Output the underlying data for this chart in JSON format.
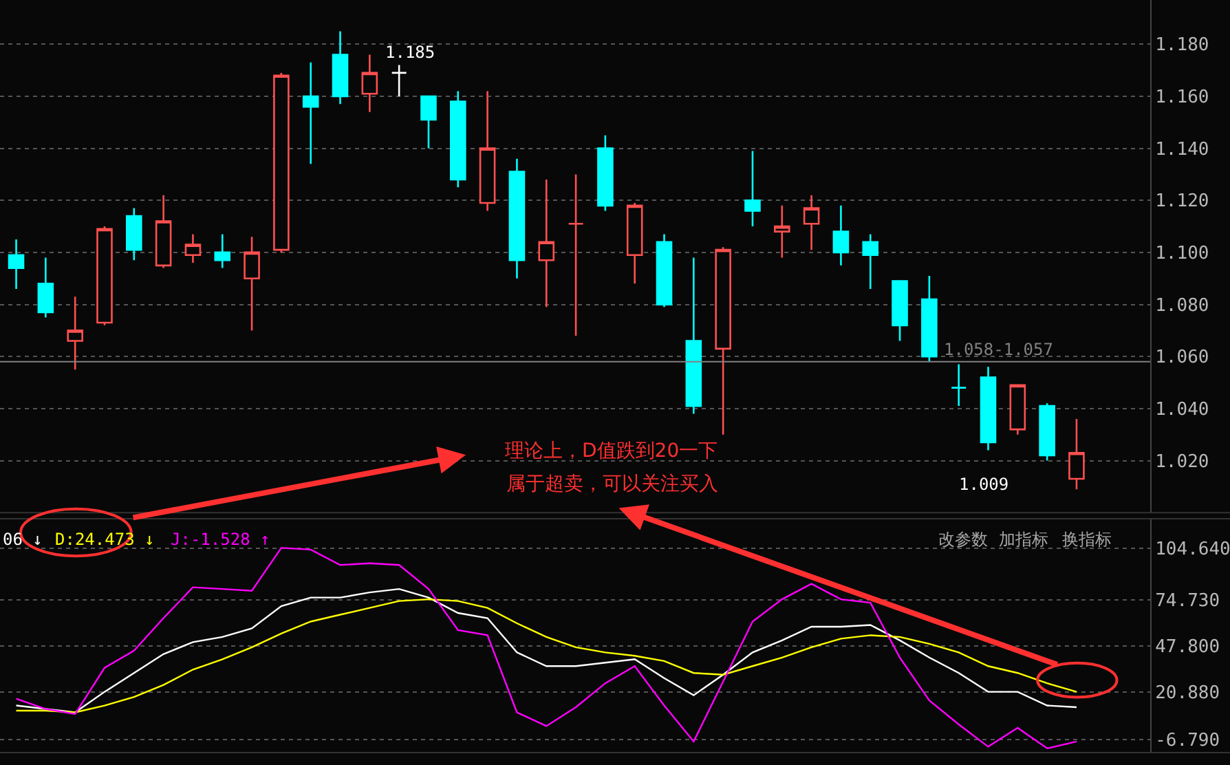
{
  "chart_data": [
    {
      "type": "candlestick",
      "categories": [
        null,
        null,
        null,
        null,
        null,
        null,
        null,
        null,
        null,
        null,
        null,
        null,
        null,
        null,
        null,
        null,
        null,
        null,
        null,
        null,
        null,
        null,
        null,
        null,
        null,
        null,
        null,
        null,
        null,
        null,
        null,
        null,
        null,
        null,
        null,
        null,
        null
      ],
      "ohlc": [
        [
          1.099,
          1.105,
          1.086,
          1.094
        ],
        [
          1.088,
          1.098,
          1.075,
          1.077
        ],
        [
          1.066,
          1.083,
          1.055,
          1.07
        ],
        [
          1.073,
          1.11,
          1.072,
          1.109
        ],
        [
          1.114,
          1.117,
          1.097,
          1.101
        ],
        [
          1.095,
          1.122,
          1.094,
          1.112
        ],
        [
          1.099,
          1.107,
          1.096,
          1.103
        ],
        [
          1.1,
          1.107,
          1.094,
          1.097
        ],
        [
          1.09,
          1.106,
          1.07,
          1.1
        ],
        [
          1.101,
          1.169,
          1.1,
          1.168
        ],
        [
          1.16,
          1.173,
          1.134,
          1.156
        ],
        [
          1.176,
          1.185,
          1.157,
          1.16
        ],
        [
          1.161,
          1.176,
          1.154,
          1.169
        ],
        [
          1.169,
          1.172,
          1.16,
          1.169
        ],
        [
          1.16,
          1.16,
          1.14,
          1.151
        ],
        [
          1.158,
          1.162,
          1.125,
          1.128
        ],
        [
          1.119,
          1.162,
          1.116,
          1.14
        ],
        [
          1.131,
          1.136,
          1.09,
          1.097
        ],
        [
          1.097,
          1.128,
          1.079,
          1.104
        ],
        [
          1.111,
          1.13,
          1.068,
          1.111
        ],
        [
          1.14,
          1.145,
          1.116,
          1.118
        ],
        [
          1.099,
          1.119,
          1.088,
          1.118
        ],
        [
          1.104,
          1.107,
          1.079,
          1.08
        ],
        [
          1.066,
          1.098,
          1.038,
          1.041
        ],
        [
          1.063,
          1.102,
          1.03,
          1.101
        ],
        [
          1.12,
          1.139,
          1.11,
          1.116
        ],
        [
          1.108,
          1.118,
          1.098,
          1.11
        ],
        [
          1.111,
          1.122,
          1.101,
          1.117
        ],
        [
          1.108,
          1.118,
          1.095,
          1.1
        ],
        [
          1.104,
          1.107,
          1.086,
          1.099
        ],
        [
          1.089,
          1.089,
          1.066,
          1.072
        ],
        [
          1.082,
          1.091,
          1.058,
          1.06
        ],
        [
          1.048,
          1.057,
          1.041,
          1.048
        ],
        [
          1.052,
          1.056,
          1.024,
          1.027
        ],
        [
          1.032,
          1.049,
          1.03,
          1.049
        ],
        [
          1.041,
          1.042,
          1.02,
          1.022
        ],
        [
          1.013,
          1.036,
          1.009,
          1.023
        ]
      ],
      "colors": [
        "#00ffff",
        "#00ffff",
        "#ff5050",
        "#ff5050",
        "#00ffff",
        "#ff5050",
        "#ff5050",
        "#00ffff",
        "#ff5050",
        "#ff5050",
        "#00ffff",
        "#00ffff",
        "#ff5050",
        "#ffffff",
        "#00ffff",
        "#00ffff",
        "#ff5050",
        "#00ffff",
        "#ff5050",
        "#ff5050",
        "#00ffff",
        "#ff5050",
        "#00ffff",
        "#00ffff",
        "#ff5050",
        "#00ffff",
        "#ff5050",
        "#ff5050",
        "#00ffff",
        "#00ffff",
        "#00ffff",
        "#00ffff",
        "#00ffff",
        "#00ffff",
        "#ff5050",
        "#00ffff",
        "#ff5050"
      ],
      "ylim": [
        1.0,
        1.197
      ],
      "yticks": [
        {
          "value": 1.18,
          "label": "1.180"
        },
        {
          "value": 1.16,
          "label": "1.160"
        },
        {
          "value": 1.14,
          "label": "1.140"
        },
        {
          "value": 1.12,
          "label": "1.120"
        },
        {
          "value": 1.1,
          "label": "1.100"
        },
        {
          "value": 1.08,
          "label": "1.080"
        },
        {
          "value": 1.06,
          "label": "1.060"
        },
        {
          "value": 1.04,
          "label": "1.040"
        },
        {
          "value": 1.02,
          "label": "1.020"
        }
      ],
      "grid": "y",
      "tick_labels": "y",
      "ref_lines": [
        {
          "axis": "y",
          "value": 1.058,
          "label": "1.058-1.057",
          "color": "#808080"
        }
      ],
      "annotations": [
        "1.185",
        "1.009",
        "理论上，D值跌到20一下",
        "属于超卖，可以关注买入"
      ]
    },
    {
      "type": "line",
      "categories": [
        null,
        null,
        null,
        null,
        null,
        null,
        null,
        null,
        null,
        null,
        null,
        null,
        null,
        null,
        null,
        null,
        null,
        null,
        null,
        null,
        null,
        null,
        null,
        null,
        null,
        null,
        null,
        null,
        null,
        null,
        null,
        null,
        null,
        null,
        null,
        null,
        null
      ],
      "series": [
        {
          "name": "06 ↓",
          "color": "#ffffff",
          "values": [
            13,
            11,
            9,
            21,
            32,
            43,
            50,
            53,
            58,
            71,
            76,
            76,
            79,
            81,
            76,
            67,
            64,
            44,
            36,
            36,
            38,
            40,
            29,
            19,
            31,
            44,
            51,
            59,
            59,
            60,
            51,
            41,
            32,
            21,
            21,
            13,
            12
          ]
        },
        {
          "name": "D:24.473 ↓",
          "color": "#ffff00",
          "values": [
            10,
            10,
            9,
            13,
            18,
            25,
            34,
            40,
            47,
            55,
            62,
            66,
            70,
            74,
            75,
            74,
            70,
            61,
            53,
            47,
            44,
            42,
            39,
            32,
            31,
            36,
            41,
            47,
            52,
            54,
            53,
            49,
            44,
            36,
            32,
            26,
            21
          ]
        },
        {
          "name": "J:-1.528 ↑",
          "color": "#ff00ff",
          "values": [
            17,
            11,
            8,
            35,
            45,
            64,
            82,
            81,
            80,
            105,
            104,
            95,
            96,
            95,
            81,
            57,
            54,
            9,
            1,
            12,
            26,
            36,
            13,
            -8,
            27,
            62,
            75,
            84,
            75,
            73,
            41,
            16,
            2,
            -11,
            0,
            -12,
            -8
          ]
        }
      ],
      "ylim": [
        -14.5,
        122
      ],
      "yticks": [
        {
          "value": 104.64,
          "label": "104.640"
        },
        {
          "value": 74.73,
          "label": "74.730"
        },
        {
          "value": 47.8,
          "label": "47.800"
        },
        {
          "value": 20.88,
          "label": "20.880"
        },
        {
          "value": -6.79,
          "label": "-6.790"
        }
      ],
      "grid": "y",
      "tick_labels": "y",
      "legend": "top left",
      "marker": "none",
      "line_style": "solid",
      "annotations": [
        "改参数",
        "加指标",
        "换指标"
      ]
    }
  ]
}
